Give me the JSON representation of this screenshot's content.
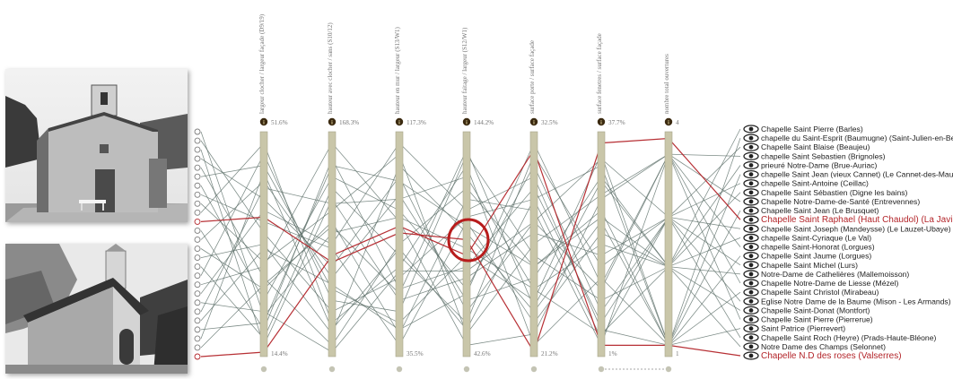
{
  "photos": [
    {
      "name": "chapel-photo-top",
      "description_hidden": ""
    },
    {
      "name": "chapel-photo-bottom",
      "description_hidden": ""
    }
  ],
  "chart_data": {
    "type": "parallel-coordinates",
    "title": "",
    "axes": [
      {
        "label": "largeur clocher / largeur façade (D9/19)",
        "max": "51.6%",
        "min": "14.4%"
      },
      {
        "label": "hauteur avec clocher / sans (S10/12)",
        "max": "168.3%",
        "min": ""
      },
      {
        "label": "hauteur en mur / largeur (S13/W1)",
        "max": "117.3%",
        "min": "35.5%"
      },
      {
        "label": "hauteur faitage / largeur (S12/W1)",
        "max": "144.2%",
        "min": "42.6%"
      },
      {
        "label": "surface porte / surface façade",
        "max": "32.5%",
        "min": "21.2%"
      },
      {
        "label": "surface fenetres / surface façade",
        "max": "37.7%",
        "min": "1%"
      },
      {
        "label": "nombre total ouvertures",
        "max": "4",
        "min": "1"
      }
    ],
    "items": [
      {
        "label": "Chapelle Saint Pierre (Barles)",
        "highlight": false,
        "values": [
          0.18,
          0.55,
          0.62,
          0.48,
          0.3,
          0.1,
          0.4
        ]
      },
      {
        "label": "chapelle du Saint-Esprit (Baumugne) (Saint-Julien-en-Beauchêne)",
        "highlight": false,
        "values": [
          0.55,
          0.2,
          0.35,
          0.62,
          0.7,
          0.85,
          0.05
        ]
      },
      {
        "label": "Chapelle Saint Blaise (Beaujeu)",
        "highlight": false,
        "values": [
          0.05,
          0.7,
          0.25,
          0.35,
          0.55,
          0.45,
          0.62
        ]
      },
      {
        "label": "chapelle Saint Sebastien (Brignoles)",
        "highlight": false,
        "values": [
          0.7,
          0.4,
          0.8,
          0.2,
          0.6,
          0.3,
          0.9
        ]
      },
      {
        "label": "prieuré Notre-Dame (Brue-Auriac)",
        "highlight": false,
        "values": [
          0.35,
          0.05,
          0.5,
          0.75,
          0.4,
          0.62,
          0.4
        ]
      },
      {
        "label": "chapelle Saint Jean (vieux Cannet) (Le Cannet-des-Maures)",
        "highlight": false,
        "values": [
          0.85,
          0.3,
          0.15,
          0.45,
          0.25,
          0.9,
          0.05
        ]
      },
      {
        "label": "chapelle Saint-Antoine (Ceillac)",
        "highlight": false,
        "values": [
          0.25,
          0.8,
          0.65,
          0.3,
          0.85,
          0.2,
          0.62
        ]
      },
      {
        "label": "Chapelle Saint Sébastien (Digne les bains)",
        "highlight": false,
        "values": [
          0.6,
          0.48,
          0.05,
          0.6,
          0.15,
          0.55,
          0.4
        ]
      },
      {
        "label": "Chapelle Notre-Dame-de-Santé (Entrevennes)",
        "highlight": false,
        "values": [
          0.42,
          0.65,
          0.9,
          0.1,
          0.5,
          0.72,
          0.9
        ]
      },
      {
        "label": "Chapelle Saint Jean (Le Brusquet)",
        "highlight": false,
        "values": [
          0.95,
          0.15,
          0.4,
          0.85,
          0.05,
          0.35,
          0.05
        ]
      },
      {
        "label": "Chapelle Saint Raphael (Haut Chaudol) (La Javie)",
        "highlight": true,
        "values": [
          0.62,
          0.42,
          0.55,
          0.52,
          0.02,
          0.95,
          0.97
        ]
      },
      {
        "label": "Chapelle Saint Joseph (Mandeysse) (Le Lauzet-Ubaye)",
        "highlight": false,
        "values": [
          0.12,
          0.88,
          0.3,
          0.4,
          0.75,
          0.15,
          0.62
        ]
      },
      {
        "label": "chapelle Saint-Cyriaque (Le Val)",
        "highlight": false,
        "values": [
          0.78,
          0.35,
          0.72,
          0.25,
          0.35,
          0.8,
          0.4
        ]
      },
      {
        "label": "chapelle Saint-Honorat (Lorgues)",
        "highlight": false,
        "values": [
          0.3,
          0.6,
          0.1,
          0.7,
          0.65,
          0.05,
          0.9
        ]
      },
      {
        "label": "Chapelle Saint Jaume (Lorgues)",
        "highlight": false,
        "values": [
          0.5,
          0.1,
          0.85,
          0.55,
          0.2,
          0.6,
          0.05
        ]
      },
      {
        "label": "Chapelle Saint Michel (Lurs)",
        "highlight": false,
        "values": [
          0.08,
          0.75,
          0.45,
          0.15,
          0.9,
          0.4,
          0.62
        ]
      },
      {
        "label": "Notre-Dame de Cathelières (Mallemoisson)",
        "highlight": false,
        "values": [
          0.9,
          0.25,
          0.2,
          0.9,
          0.45,
          0.25,
          0.4
        ]
      },
      {
        "label": "Chapelle Notre-Dame de Liesse (Mézel)",
        "highlight": false,
        "values": [
          0.4,
          0.95,
          0.6,
          0.05,
          0.1,
          0.7,
          0.9
        ]
      },
      {
        "label": "Chapelle Saint Christol (Mirabeau)",
        "highlight": false,
        "values": [
          0.65,
          0.5,
          0.95,
          0.65,
          0.8,
          0.12,
          0.05
        ]
      },
      {
        "label": "Eglise Notre Dame de la Baume  (Mison - Les Armands)",
        "highlight": false,
        "values": [
          0.2,
          0.02,
          0.38,
          0.38,
          0.6,
          0.88,
          0.62
        ]
      },
      {
        "label": "Chapelle Saint-Donat (Montfort)",
        "highlight": false,
        "values": [
          0.75,
          0.68,
          0.7,
          0.8,
          0.3,
          0.5,
          0.4
        ]
      },
      {
        "label": "Chapelle Saint Pierre (Pierrerue)",
        "highlight": false,
        "values": [
          0.48,
          0.32,
          0.12,
          0.28,
          0.95,
          0.32,
          0.9
        ]
      },
      {
        "label": "Saint Patrice (Pierrevert)",
        "highlight": false,
        "values": [
          0.15,
          0.85,
          0.78,
          0.58,
          0.4,
          0.65,
          0.05
        ]
      },
      {
        "label": "Chapelle Saint Roch (Heyre) (Prads-Haute-Bléone)",
        "highlight": false,
        "values": [
          0.82,
          0.12,
          0.48,
          0.12,
          0.7,
          0.08,
          0.62
        ]
      },
      {
        "label": "Notre Dame des Champs (Selonnet)",
        "highlight": false,
        "values": [
          0.32,
          0.58,
          0.28,
          0.92,
          0.22,
          0.78,
          0.4
        ]
      },
      {
        "label": "Chapelle N.D des roses (Valserres)",
        "highlight": true,
        "values": [
          0.02,
          0.45,
          0.58,
          0.45,
          0.92,
          0.05,
          0.05
        ]
      }
    ]
  },
  "colors": {
    "axis": "#c9c6a9",
    "axis_stroke": "#a9a68a",
    "line": "#5b6e68",
    "highlight": "#b3252a",
    "circle": "#b81c1c",
    "info_icon": "#3b2a10"
  }
}
